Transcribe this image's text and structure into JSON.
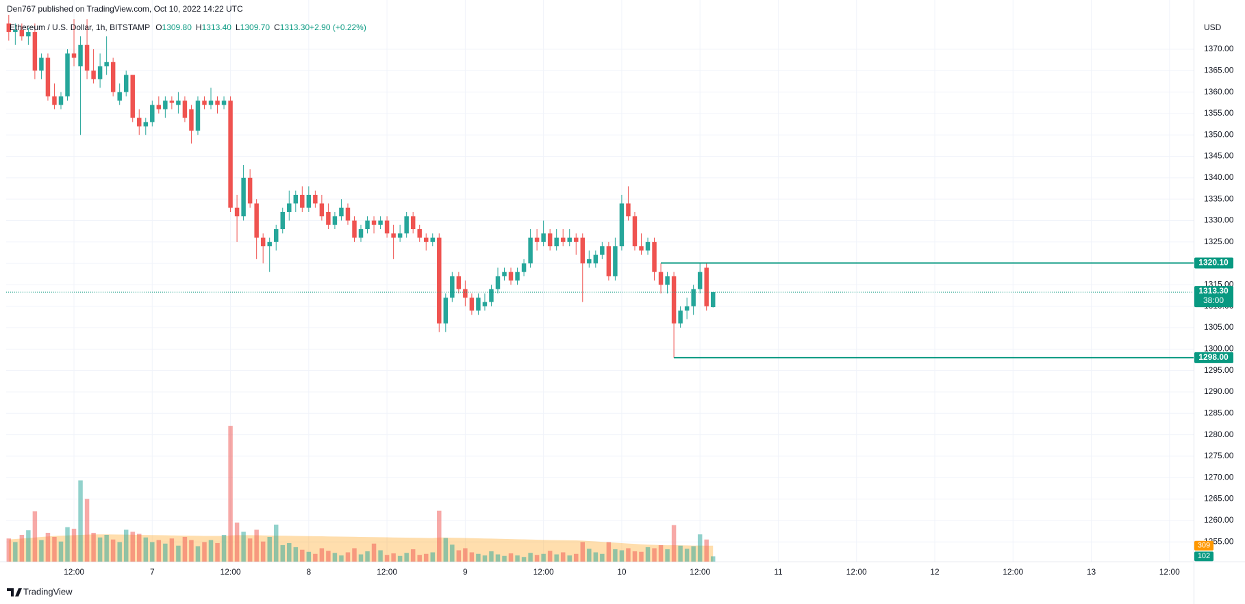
{
  "chart_data": {
    "type": "candlestick",
    "publisher": "Den767 published on TradingView.com, Oct 10, 2022 14:22 UTC",
    "title": "Ethereum / U.S. Dollar, 1h, BITSTAMP",
    "legend": [
      {
        "key": "O",
        "value": "1309.80"
      },
      {
        "key": "H",
        "value": "1313.40"
      },
      {
        "key": "L",
        "value": "1309.70"
      },
      {
        "key": "C",
        "value": "1313.30"
      },
      {
        "key": "",
        "value": "+2.90 (+0.22%)"
      }
    ],
    "unit": "USD",
    "brand": "TradingView",
    "up_color": "#26a69a",
    "down_color": "#ef5350",
    "volume_ma_color": "#ff9800",
    "level_color": "#089981",
    "x": [
      2,
      3,
      4,
      5,
      6,
      7,
      8,
      9,
      10,
      11,
      12,
      13,
      14,
      15,
      16,
      17,
      18,
      19,
      20,
      21,
      22,
      23,
      24,
      25,
      26,
      27,
      28,
      29,
      30,
      31,
      32,
      33,
      34,
      35,
      36,
      37,
      38,
      39,
      40,
      41,
      42,
      43,
      44,
      45,
      46,
      47,
      48,
      49,
      50,
      51,
      52,
      53,
      54,
      55,
      56,
      57,
      58,
      59,
      60,
      61,
      62,
      63,
      64,
      65,
      66,
      67,
      68,
      69,
      70,
      71,
      72,
      73,
      74,
      75,
      76,
      77,
      78,
      79,
      80,
      81,
      82,
      83,
      84,
      85,
      86,
      87,
      88,
      89,
      90,
      91,
      92,
      93,
      94,
      95,
      96,
      97,
      98,
      99,
      100,
      101,
      102,
      103,
      104,
      105,
      106,
      107,
      108,
      109,
      110
    ],
    "open": [
      1376,
      1374,
      1374.5,
      1373,
      1374,
      1365,
      1368,
      1359,
      1357,
      1359,
      1369,
      1366,
      1371,
      1365,
      1363,
      1366,
      1367,
      1358,
      1360,
      1364,
      1354,
      1352,
      1353,
      1357,
      1356,
      1358,
      1357,
      1358,
      1356,
      1351,
      1358,
      1357,
      1358,
      1357,
      1358,
      1333,
      1331,
      1340,
      1334,
      1326,
      1324,
      1325,
      1328,
      1332,
      1334,
      1336,
      1333,
      1336,
      1334,
      1332,
      1329,
      1331,
      1333,
      1330,
      1326,
      1328,
      1330,
      1329,
      1330,
      1327,
      1326,
      1327,
      1331,
      1328,
      1326,
      1325,
      1326,
      1306,
      1312,
      1317,
      1314,
      1312,
      1309,
      1310,
      1311,
      1314,
      1317,
      1318,
      1316,
      1318,
      1320,
      1326,
      1325,
      1327,
      1324,
      1326,
      1325,
      1326,
      1326,
      1320,
      1320,
      1322,
      1324,
      1317,
      1324,
      1334,
      1331,
      1324,
      1323,
      1325,
      1318,
      1315,
      1317,
      1306,
      1309,
      1310,
      1314,
      1319,
      1309.8
    ],
    "high": [
      1378,
      1376,
      1376,
      1375,
      1376,
      1369,
      1369,
      1362,
      1360,
      1370,
      1377,
      1373,
      1377,
      1370,
      1369,
      1373,
      1368,
      1362,
      1365,
      1364,
      1356,
      1354,
      1358,
      1359,
      1359,
      1359,
      1360,
      1359,
      1357,
      1359,
      1359,
      1361,
      1359,
      1359,
      1359,
      1336,
      1343,
      1342,
      1335,
      1327,
      1326,
      1329,
      1333,
      1337,
      1337,
      1338,
      1338,
      1337,
      1336,
      1334,
      1332,
      1335,
      1334,
      1331,
      1329,
      1331,
      1331,
      1331,
      1331,
      1329,
      1329,
      1332,
      1332,
      1329,
      1327,
      1327,
      1327,
      1313,
      1318,
      1318,
      1316,
      1313,
      1313,
      1313,
      1315,
      1319,
      1319,
      1319,
      1319,
      1321,
      1328,
      1328,
      1330,
      1328,
      1328,
      1328,
      1328,
      1327,
      1327,
      1323,
      1323,
      1325,
      1325,
      1326,
      1336,
      1338,
      1332,
      1327,
      1326,
      1326,
      1320,
      1318,
      1318,
      1310,
      1312,
      1315,
      1320,
      1320,
      1313.4
    ],
    "low": [
      1372,
      1371,
      1372,
      1371,
      1363,
      1363,
      1358,
      1356,
      1356,
      1358,
      1366,
      1350,
      1363,
      1362,
      1361,
      1364,
      1359,
      1357,
      1359,
      1353,
      1350,
      1350,
      1352,
      1355,
      1354,
      1356,
      1355,
      1353,
      1348,
      1350,
      1356,
      1356,
      1355,
      1356,
      1332,
      1325,
      1330,
      1333,
      1321,
      1320,
      1318,
      1323,
      1327,
      1330,
      1332,
      1332,
      1332,
      1333,
      1330,
      1328,
      1328,
      1330,
      1329,
      1325,
      1325,
      1327,
      1327,
      1328,
      1326,
      1321,
      1325,
      1326,
      1327,
      1325,
      1323,
      1324,
      1304,
      1304,
      1311,
      1313,
      1310,
      1308,
      1308,
      1309,
      1310,
      1313,
      1316,
      1315,
      1315,
      1317,
      1319,
      1323,
      1324,
      1323,
      1323,
      1324,
      1324,
      1322,
      1311,
      1319,
      1319,
      1321,
      1316,
      1316,
      1323,
      1330,
      1323,
      1322,
      1322,
      1316,
      1313,
      1313,
      1298,
      1305,
      1307,
      1308,
      1313,
      1309,
      1309.7
    ],
    "close": [
      1374,
      1374.5,
      1373,
      1374,
      1365,
      1368,
      1359,
      1357,
      1359,
      1369,
      1368,
      1371,
      1365,
      1363,
      1366,
      1367,
      1360,
      1360,
      1364,
      1354,
      1352,
      1353,
      1357,
      1356,
      1358,
      1357.5,
      1358,
      1354,
      1351,
      1358,
      1357,
      1358,
      1357,
      1358,
      1333,
      1331,
      1340,
      1334,
      1326,
      1324,
      1325,
      1328,
      1332,
      1334,
      1336,
      1333,
      1336,
      1334,
      1331,
      1329,
      1331,
      1333,
      1330,
      1326,
      1328,
      1330,
      1329,
      1330,
      1327,
      1326,
      1327,
      1331,
      1328,
      1326,
      1325,
      1326,
      1306,
      1312,
      1317,
      1314,
      1312,
      1309,
      1312,
      1311,
      1314,
      1317,
      1318,
      1316,
      1318,
      1320,
      1326,
      1325,
      1327,
      1324,
      1326,
      1325,
      1326,
      1325,
      1320,
      1321,
      1322,
      1324,
      1317,
      1324,
      1334,
      1331,
      1324,
      1323,
      1325,
      1318,
      1315,
      1317,
      1306,
      1309,
      1310,
      1314,
      1318,
      1310,
      1313.3
    ],
    "volume": [
      450,
      380,
      520,
      610,
      980,
      420,
      560,
      480,
      390,
      670,
      640,
      1580,
      1220,
      560,
      470,
      520,
      430,
      380,
      620,
      580,
      540,
      470,
      380,
      420,
      350,
      450,
      310,
      480,
      420,
      300,
      380,
      420,
      360,
      520,
      2640,
      760,
      580,
      450,
      620,
      390,
      480,
      720,
      320,
      360,
      280,
      230,
      190,
      150,
      260,
      210,
      170,
      120,
      180,
      260,
      140,
      200,
      350,
      220,
      130,
      160,
      110,
      170,
      240,
      130,
      150,
      180,
      990,
      460,
      330,
      220,
      260,
      180,
      150,
      120,
      200,
      140,
      110,
      160,
      120,
      90,
      170,
      130,
      150,
      210,
      140,
      180,
      120,
      150,
      380,
      250,
      180,
      150,
      380,
      240,
      220,
      260,
      200,
      190,
      280,
      260,
      320,
      240,
      710,
      310,
      250,
      300,
      530,
      430,
      102
    ],
    "volume_ma": [
      430,
      440,
      450,
      460,
      470,
      480,
      490,
      500,
      505,
      510,
      515,
      520,
      525,
      530,
      530,
      530,
      528,
      526,
      524,
      522,
      520,
      518,
      516,
      514,
      512,
      510,
      508,
      506,
      504,
      502,
      500,
      500,
      500,
      500,
      510,
      515,
      515,
      515,
      512,
      510,
      508,
      506,
      504,
      502,
      500,
      498,
      496,
      494,
      492,
      490,
      488,
      486,
      484,
      482,
      480,
      478,
      476,
      474,
      472,
      470,
      468,
      466,
      464,
      462,
      460,
      458,
      470,
      468,
      465,
      462,
      459,
      456,
      453,
      450,
      447,
      444,
      441,
      438,
      435,
      432,
      429,
      426,
      423,
      420,
      418,
      416,
      414,
      412,
      408,
      400,
      392,
      384,
      376,
      368,
      360,
      352,
      344,
      336,
      330,
      326,
      322,
      318,
      320,
      316,
      314,
      312,
      312,
      310,
      309
    ],
    "volume_labels": [
      {
        "value": 309,
        "label": "309",
        "color": "#ff9800"
      },
      {
        "value": 102,
        "label": "102",
        "color": "#089981"
      }
    ],
    "levels": [
      {
        "value": 1320.1,
        "label": "1320.10",
        "x_start": 102
      },
      {
        "value": 1298,
        "label": "1298.00",
        "x_start": 104
      }
    ],
    "last_price": {
      "value": 1313.3,
      "label": "1313.30"
    },
    "countdown": "38:00",
    "xlim": [
      1.6,
      183.7
    ],
    "xticks": [
      {
        "value": 12,
        "label": "12:00"
      },
      {
        "value": 24,
        "label": "7"
      },
      {
        "value": 36,
        "label": "12:00"
      },
      {
        "value": 48,
        "label": "8"
      },
      {
        "value": 60,
        "label": "12:00"
      },
      {
        "value": 72,
        "label": "9"
      },
      {
        "value": 84,
        "label": "12:00"
      },
      {
        "value": 96,
        "label": "10"
      },
      {
        "value": 108,
        "label": "12:00"
      },
      {
        "value": 120,
        "label": "11"
      },
      {
        "value": 132,
        "label": "12:00"
      },
      {
        "value": 144,
        "label": "12"
      },
      {
        "value": 156,
        "label": "12:00"
      },
      {
        "value": 168,
        "label": "13"
      },
      {
        "value": 180,
        "label": "12:00"
      }
    ],
    "ylim": [
      1250.4,
      1377.5
    ],
    "yticks": [
      {
        "value": 1255,
        "label": "1255.00"
      },
      {
        "value": 1260,
        "label": "1260.00"
      },
      {
        "value": 1265,
        "label": "1265.00"
      },
      {
        "value": 1270,
        "label": "1270.00"
      },
      {
        "value": 1275,
        "label": "1275.00"
      },
      {
        "value": 1280,
        "label": "1280.00"
      },
      {
        "value": 1285,
        "label": "1285.00"
      },
      {
        "value": 1290,
        "label": "1290.00"
      },
      {
        "value": 1295,
        "label": "1295.00"
      },
      {
        "value": 1300,
        "label": "1300.00"
      },
      {
        "value": 1305,
        "label": "1305.00"
      },
      {
        "value": 1310,
        "label": "1310.00"
      },
      {
        "value": 1315,
        "label": "1315.00"
      },
      {
        "value": 1320,
        "label": "1320.00"
      },
      {
        "value": 1325,
        "label": "1325.00"
      },
      {
        "value": 1330,
        "label": "1330.00"
      },
      {
        "value": 1335,
        "label": "1335.00"
      },
      {
        "value": 1340,
        "label": "1340.00"
      },
      {
        "value": 1345,
        "label": "1345.00"
      },
      {
        "value": 1350,
        "label": "1350.00"
      },
      {
        "value": 1355,
        "label": "1355.00"
      },
      {
        "value": 1360,
        "label": "1360.00"
      },
      {
        "value": 1365,
        "label": "1365.00"
      },
      {
        "value": 1370,
        "label": "1370.00"
      }
    ],
    "y2lim": [
      0,
      10600
    ],
    "grid": true
  }
}
